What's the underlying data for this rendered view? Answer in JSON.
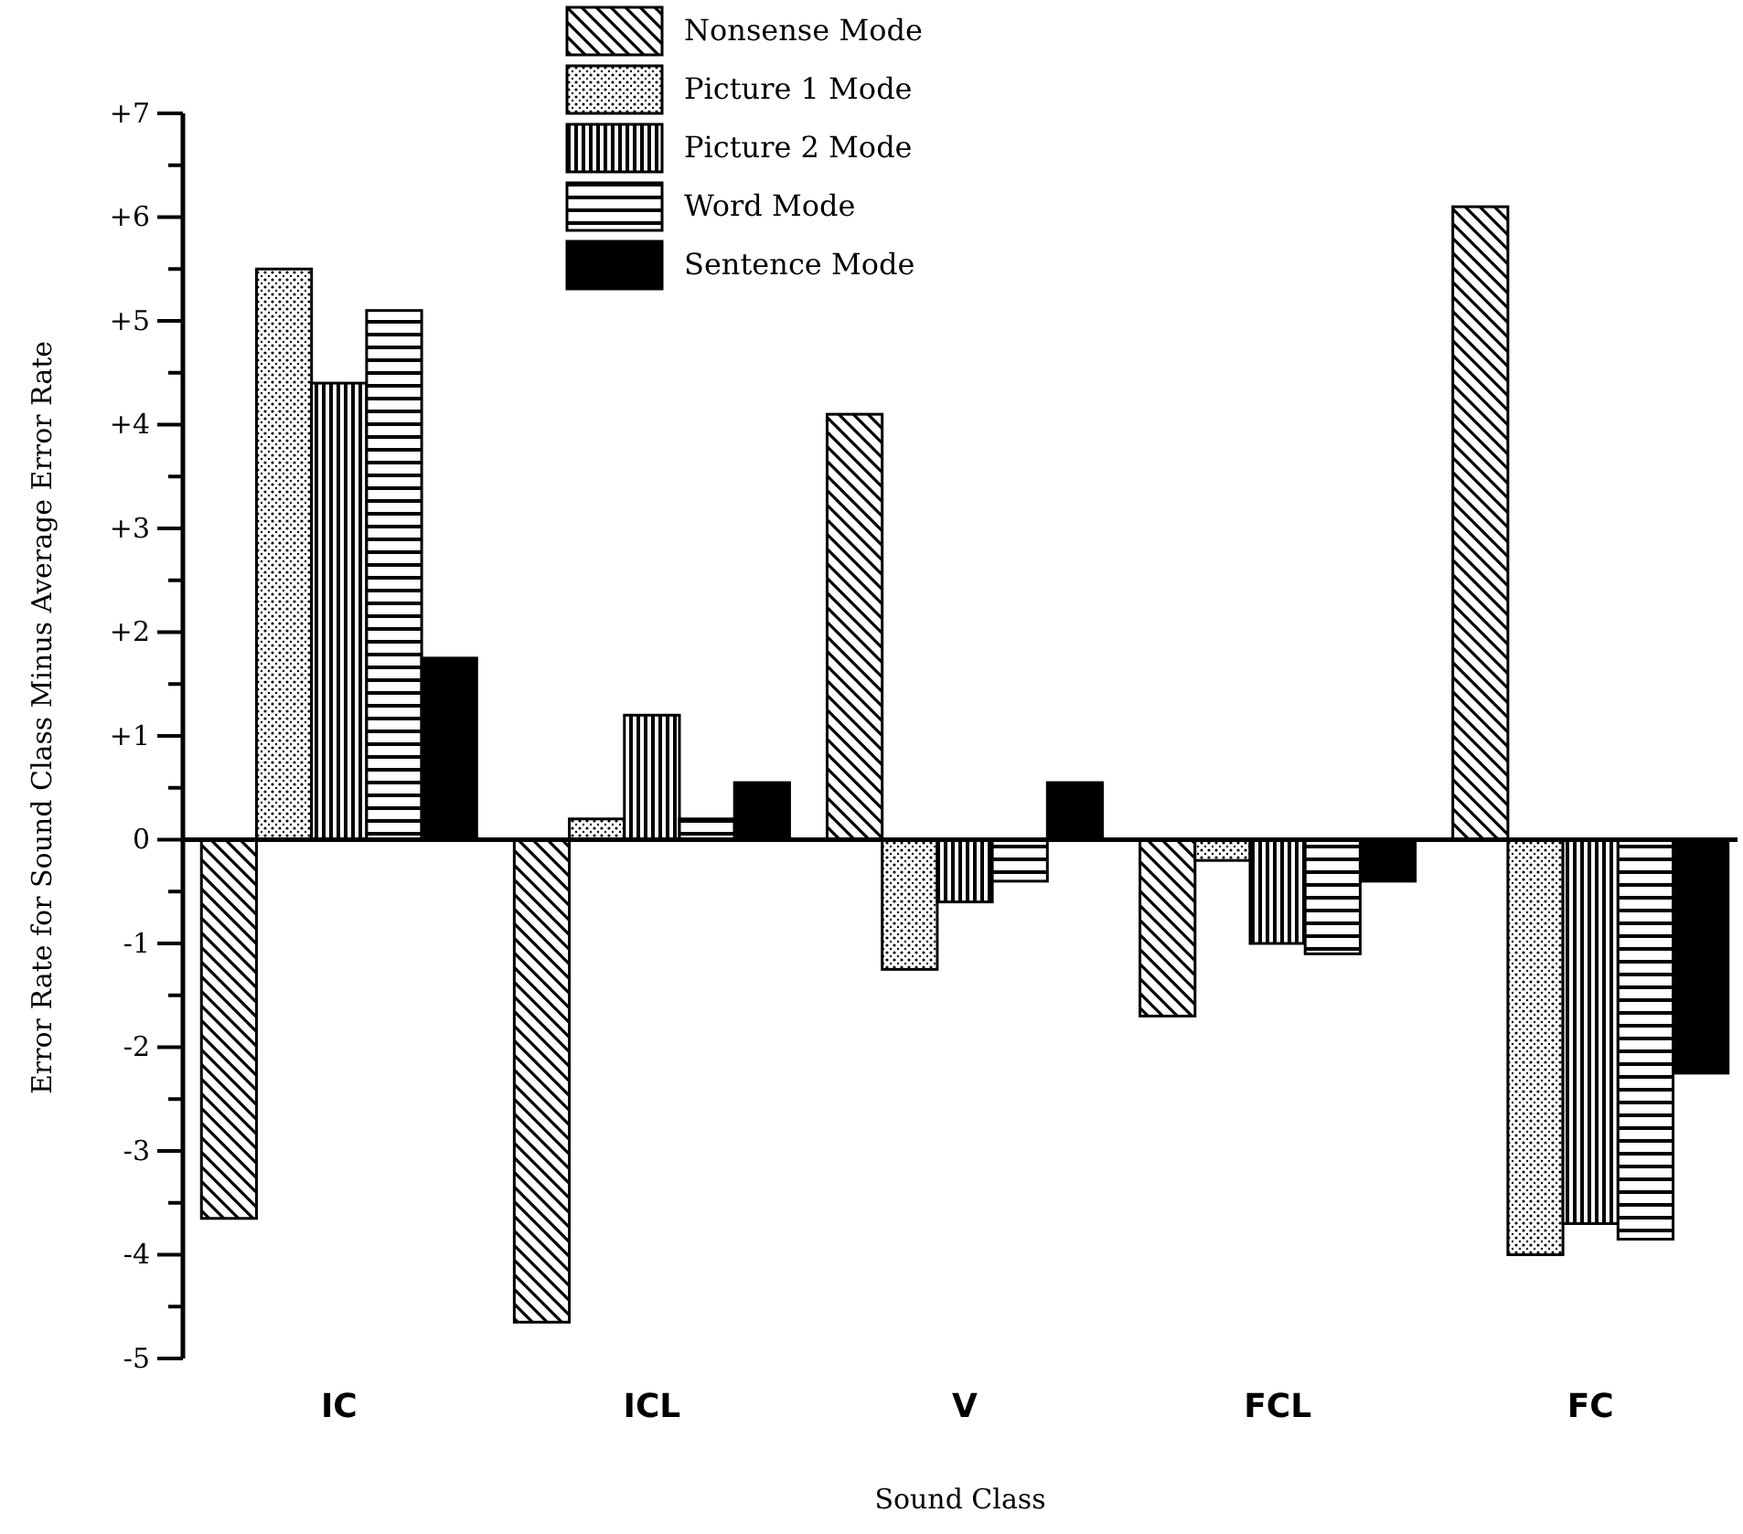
{
  "chart_data": {
    "type": "bar",
    "xlabel": "Sound Class",
    "ylabel": "Error Rate for Sound Class Minus Average Error Rate",
    "categories": [
      "IC",
      "ICL",
      "V",
      "FCL",
      "FC"
    ],
    "series": [
      {
        "name": "Nonsense Mode",
        "color": "#000000",
        "values": [
          -3.65,
          -4.65,
          4.1,
          -1.7,
          6.1
        ]
      },
      {
        "name": "Picture 1 Mode",
        "color": "#000000",
        "values": [
          5.5,
          0.2,
          -1.25,
          -0.2,
          -4.0
        ]
      },
      {
        "name": "Picture 2 Mode",
        "color": "#000000",
        "values": [
          4.4,
          1.2,
          -0.6,
          -1.0,
          -3.7
        ]
      },
      {
        "name": "Word Mode",
        "color": "#000000",
        "values": [
          5.1,
          0.2,
          -0.4,
          -1.1,
          -3.85
        ]
      },
      {
        "name": "Sentence Mode",
        "color": "#000000",
        "values": [
          1.75,
          0.55,
          0.55,
          -0.4,
          -2.25
        ]
      }
    ],
    "ylim": [
      -5,
      7
    ],
    "yticks": [
      {
        "value": -5,
        "label": "-5"
      },
      {
        "value": -4.5,
        "label": null
      },
      {
        "value": -4,
        "label": "-4"
      },
      {
        "value": -3.5,
        "label": null
      },
      {
        "value": -3,
        "label": "-3"
      },
      {
        "value": -2.5,
        "label": null
      },
      {
        "value": -2,
        "label": "-2"
      },
      {
        "value": -1.5,
        "label": null
      },
      {
        "value": -1,
        "label": "-1"
      },
      {
        "value": -0.5,
        "label": null
      },
      {
        "value": 0,
        "label": "0"
      },
      {
        "value": 0.5,
        "label": null
      },
      {
        "value": 1,
        "label": "+1"
      },
      {
        "value": 1.5,
        "label": null
      },
      {
        "value": 2,
        "label": "+2"
      },
      {
        "value": 2.5,
        "label": null
      },
      {
        "value": 3,
        "label": "+3"
      },
      {
        "value": 3.5,
        "label": null
      },
      {
        "value": 4,
        "label": "+4"
      },
      {
        "value": 4.5,
        "label": null
      },
      {
        "value": 5,
        "label": "+5"
      },
      {
        "value": 5.5,
        "label": null
      },
      {
        "value": 6,
        "label": "+6"
      },
      {
        "value": 6.5,
        "label": null
      },
      {
        "value": 7,
        "label": "+7"
      }
    ],
    "legend": "top"
  }
}
